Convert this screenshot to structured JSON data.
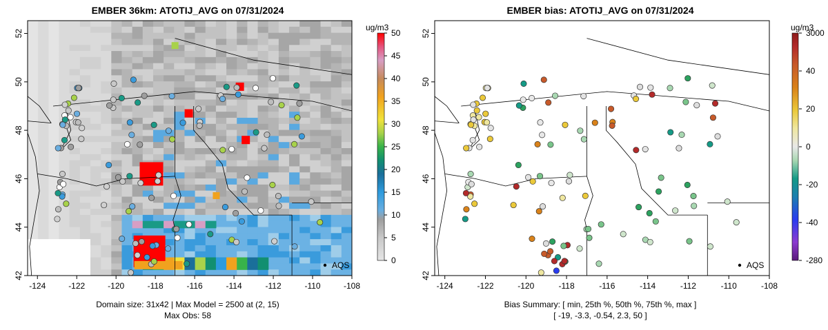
{
  "chart_data": [
    {
      "type": "heatmap",
      "title": "EMBER 36km: ATOTIJ_AVG on 07/31/2024",
      "xlabel": "",
      "ylabel": "",
      "xlim": [
        -124.5,
        -108
      ],
      "ylim": [
        42,
        52.3
      ],
      "x_ticks": [
        "-124",
        "-122",
        "-120",
        "-118",
        "-116",
        "-114",
        "-112",
        "-110",
        "-108"
      ],
      "y_ticks": [
        "42",
        "44",
        "46",
        "48",
        "50",
        "52"
      ],
      "colorbar": {
        "unit": "ug/m3",
        "ticks": [
          "0",
          "5",
          "10",
          "15",
          "20",
          "25",
          "30",
          "35",
          "40",
          "45",
          "50"
        ],
        "range": [
          0,
          50
        ]
      },
      "annotation": "AQS",
      "footer_line1": "Domain size: 31x42 | Max Model = 2500 at (2, 15)",
      "footer_line2": "Max Obs: 58",
      "hotspots": [
        {
          "lon": -118.2,
          "lat": 46.2,
          "value": 50
        },
        {
          "lon": -118.3,
          "lat": 43.0,
          "value": 50
        },
        {
          "lon": -116.3,
          "lat": 48.7,
          "value": 50
        },
        {
          "lon": -113.7,
          "lat": 49.8,
          "value": 50
        },
        {
          "lon": -113.4,
          "lat": 47.6,
          "value": 50
        },
        {
          "lon": -114.9,
          "lat": 45.3,
          "value": 42
        },
        {
          "lon": -117.0,
          "lat": 51.5,
          "value": 24
        }
      ]
    },
    {
      "type": "scatter",
      "title": "EMBER bias: ATOTIJ_AVG on 07/31/2024",
      "xlabel": "",
      "ylabel": "",
      "xlim": [
        -124.5,
        -108
      ],
      "ylim": [
        42,
        52.3
      ],
      "x_ticks": [
        "-124",
        "-122",
        "-120",
        "-118",
        "-116",
        "-114",
        "-112",
        "-110",
        "-108"
      ],
      "y_ticks": [
        "42",
        "44",
        "46",
        "48",
        "50",
        "52"
      ],
      "colorbar": {
        "unit": "ug/m3",
        "ticks": [
          "3000",
          "40",
          "20",
          "0",
          "-20",
          "-40",
          "-280"
        ]
      },
      "annotation": "AQS",
      "footer_line1": "Bias Summary: [ min, 25th %, 50th %, 75th %, max ]",
      "footer_line2": "[ -19,   -3.3,   -0.54,   2.3,   50 ]",
      "summary": {
        "min": -19,
        "p25": -3.3,
        "p50": -0.54,
        "p75": 2.3,
        "max": 50
      }
    }
  ],
  "colors": {
    "land_light": "#e2e2e2",
    "land_mid": "#c6c6c6",
    "land_dark": "#9a9a9a",
    "accent_red": "#ff0000"
  }
}
